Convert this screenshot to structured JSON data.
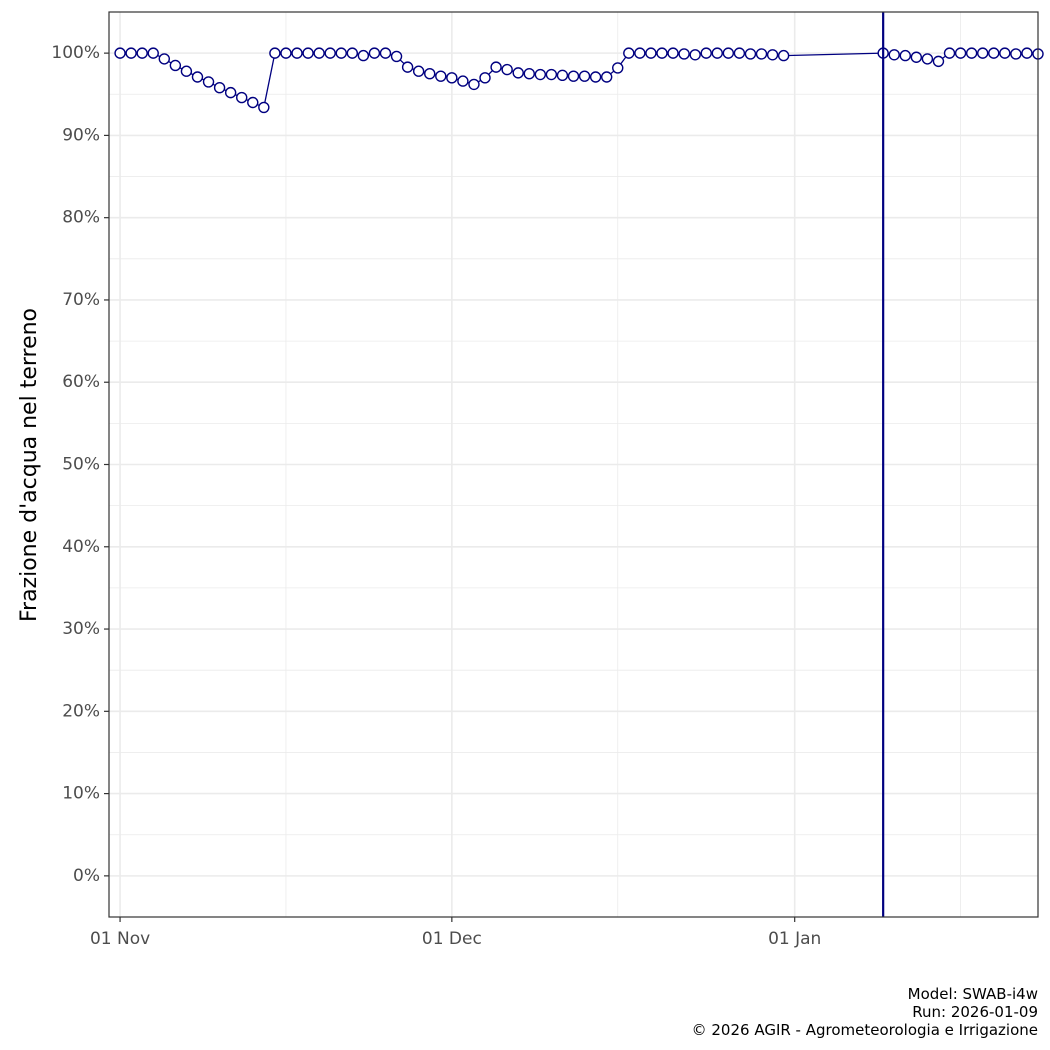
{
  "chart_data": {
    "type": "line",
    "title": "",
    "xlabel": "",
    "ylabel": "Frazione d'acqua nel terreno",
    "x_range": [
      "2025-10-31",
      "2026-01-23"
    ],
    "ylim": [
      -5,
      105
    ],
    "y_ticks": [
      0,
      10,
      20,
      30,
      40,
      50,
      60,
      70,
      80,
      90,
      100
    ],
    "y_tick_labels": [
      "0%",
      "10%",
      "20%",
      "30%",
      "40%",
      "50%",
      "60%",
      "70%",
      "80%",
      "90%",
      "100%"
    ],
    "x_ticks": [
      "2025-11-01",
      "2025-12-01",
      "2026-01-01"
    ],
    "x_tick_labels": [
      "01 Nov",
      "01 Dec",
      "01 Jan"
    ],
    "grid": true,
    "reference_line": {
      "x": "2026-01-09"
    },
    "colors": {
      "line": "#000080",
      "marker_fill": "#ffffff",
      "marker_edge": "#000080",
      "grid": "#ebebeb",
      "panel_border": "#333333"
    },
    "series": [
      {
        "points": [
          [
            "2025-11-01",
            100
          ],
          [
            "2025-11-02",
            100
          ],
          [
            "2025-11-03",
            100
          ],
          [
            "2025-11-04",
            100
          ],
          [
            "2025-11-05",
            99.3
          ],
          [
            "2025-11-06",
            98.5
          ],
          [
            "2025-11-07",
            97.8
          ],
          [
            "2025-11-08",
            97.1
          ],
          [
            "2025-11-09",
            96.5
          ],
          [
            "2025-11-10",
            95.8
          ],
          [
            "2025-11-11",
            95.2
          ],
          [
            "2025-11-12",
            94.6
          ],
          [
            "2025-11-13",
            94.0
          ],
          [
            "2025-11-14",
            93.4
          ],
          [
            "2025-11-15",
            100
          ],
          [
            "2025-11-16",
            100
          ],
          [
            "2025-11-17",
            100
          ],
          [
            "2025-11-18",
            100
          ],
          [
            "2025-11-19",
            100
          ],
          [
            "2025-11-20",
            100
          ],
          [
            "2025-11-21",
            100
          ],
          [
            "2025-11-22",
            100
          ],
          [
            "2025-11-23",
            99.7
          ],
          [
            "2025-11-24",
            100
          ],
          [
            "2025-11-25",
            100
          ],
          [
            "2025-11-26",
            99.6
          ],
          [
            "2025-11-27",
            98.3
          ],
          [
            "2025-11-28",
            97.8
          ],
          [
            "2025-11-29",
            97.5
          ],
          [
            "2025-11-30",
            97.2
          ],
          [
            "2025-12-01",
            97.0
          ],
          [
            "2025-12-02",
            96.6
          ],
          [
            "2025-12-03",
            96.2
          ],
          [
            "2025-12-04",
            97.0
          ],
          [
            "2025-12-05",
            98.3
          ],
          [
            "2025-12-06",
            98.0
          ],
          [
            "2025-12-07",
            97.6
          ],
          [
            "2025-12-08",
            97.5
          ],
          [
            "2025-12-09",
            97.4
          ],
          [
            "2025-12-10",
            97.4
          ],
          [
            "2025-12-11",
            97.3
          ],
          [
            "2025-12-12",
            97.2
          ],
          [
            "2025-12-13",
            97.2
          ],
          [
            "2025-12-14",
            97.1
          ],
          [
            "2025-12-15",
            97.1
          ],
          [
            "2025-12-16",
            98.2
          ],
          [
            "2025-12-17",
            100
          ],
          [
            "2025-12-18",
            100
          ],
          [
            "2025-12-19",
            100
          ],
          [
            "2025-12-20",
            100
          ],
          [
            "2025-12-21",
            100
          ],
          [
            "2025-12-22",
            99.9
          ],
          [
            "2025-12-23",
            99.8
          ],
          [
            "2025-12-24",
            100
          ],
          [
            "2025-12-25",
            100
          ],
          [
            "2025-12-26",
            100
          ],
          [
            "2025-12-27",
            100
          ],
          [
            "2025-12-28",
            99.9
          ],
          [
            "2025-12-29",
            99.9
          ],
          [
            "2025-12-30",
            99.8
          ],
          [
            "2025-12-31",
            99.7
          ],
          [
            "2026-01-09",
            100
          ],
          [
            "2026-01-10",
            99.8
          ],
          [
            "2026-01-11",
            99.7
          ],
          [
            "2026-01-12",
            99.5
          ],
          [
            "2026-01-13",
            99.3
          ],
          [
            "2026-01-14",
            99.0
          ],
          [
            "2026-01-15",
            100
          ],
          [
            "2026-01-16",
            100
          ],
          [
            "2026-01-17",
            100
          ],
          [
            "2026-01-18",
            100
          ],
          [
            "2026-01-19",
            100
          ],
          [
            "2026-01-20",
            100
          ],
          [
            "2026-01-21",
            99.9
          ],
          [
            "2026-01-22",
            100
          ],
          [
            "2026-01-23",
            99.9
          ]
        ]
      }
    ]
  },
  "caption": {
    "model": "Model: SWAB-i4w",
    "run": "Run: 2026-01-09",
    "copyright": "© 2026 AGIR - Agrometeorologia e Irrigazione"
  }
}
